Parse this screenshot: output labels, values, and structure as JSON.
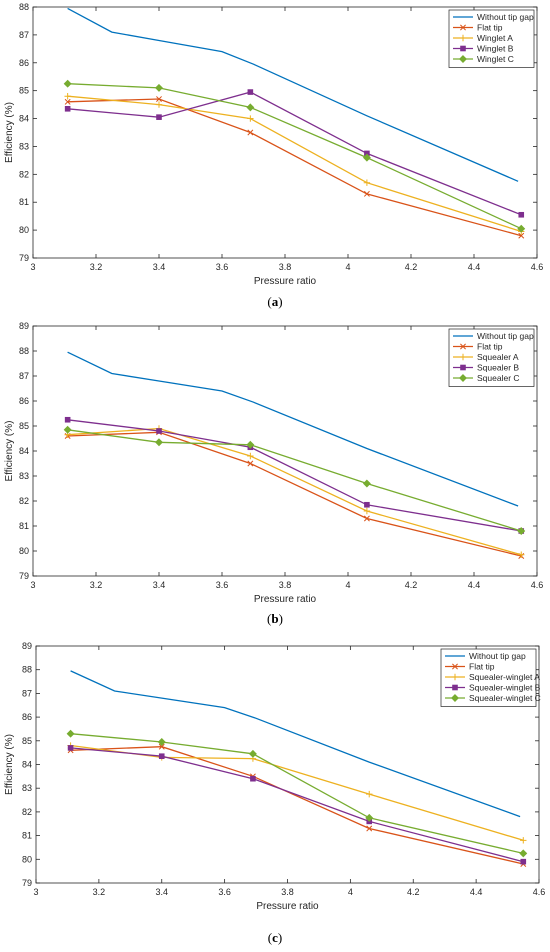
{
  "chart_data": [
    {
      "type": "line",
      "caption_open": "(",
      "caption_letter": "a",
      "caption_close": ")",
      "xlabel": "Pressure ratio",
      "ylabel": "Efficiency (%)",
      "xlim": [
        3,
        4.6
      ],
      "ylim": [
        79,
        88
      ],
      "xticks": [
        "3",
        "3.2",
        "3.4",
        "3.6",
        "3.8",
        "4",
        "4.2",
        "4.4",
        "4.6"
      ],
      "yticks": [
        "79",
        "80",
        "81",
        "82",
        "83",
        "84",
        "85",
        "86",
        "87",
        "88"
      ],
      "legend_position": "top-right",
      "series": [
        {
          "name": "Without tip gap",
          "color": "#0072BD",
          "marker": "none",
          "x": [
            3.11,
            3.25,
            3.4,
            3.6,
            3.7,
            4.06,
            4.54
          ],
          "y": [
            87.95,
            87.1,
            86.8,
            86.4,
            85.95,
            84.1,
            81.75
          ]
        },
        {
          "name": "Flat tip",
          "color": "#D95319",
          "marker": "x",
          "x": [
            3.11,
            3.4,
            3.69,
            4.06,
            4.55
          ],
          "y": [
            84.6,
            84.7,
            83.5,
            81.3,
            79.8
          ]
        },
        {
          "name": "Winglet A",
          "color": "#EDB120",
          "marker": "plus",
          "x": [
            3.11,
            3.4,
            3.69,
            4.06,
            4.55
          ],
          "y": [
            84.8,
            84.5,
            84.0,
            81.7,
            79.95
          ]
        },
        {
          "name": "Winglet B",
          "color": "#7E2F8E",
          "marker": "square",
          "x": [
            3.11,
            3.4,
            3.69,
            4.06,
            4.55
          ],
          "y": [
            84.35,
            84.05,
            84.95,
            82.75,
            80.55
          ]
        },
        {
          "name": "Winglet C",
          "color": "#77AC30",
          "marker": "diamond",
          "x": [
            3.11,
            3.4,
            3.69,
            4.06,
            4.55
          ],
          "y": [
            85.25,
            85.1,
            84.4,
            82.6,
            80.05
          ]
        }
      ]
    },
    {
      "type": "line",
      "caption_open": "(",
      "caption_letter": "b",
      "caption_close": ")",
      "xlabel": "Pressure ratio",
      "ylabel": "Efficiency (%)",
      "xlim": [
        3,
        4.6
      ],
      "ylim": [
        79,
        89
      ],
      "xticks": [
        "3",
        "3.2",
        "3.4",
        "3.6",
        "3.8",
        "4",
        "4.2",
        "4.4",
        "4.6"
      ],
      "yticks": [
        "79",
        "80",
        "81",
        "82",
        "83",
        "84",
        "85",
        "86",
        "87",
        "88",
        "89"
      ],
      "legend_position": "top-right",
      "series": [
        {
          "name": "Without tip gap",
          "color": "#0072BD",
          "marker": "none",
          "x": [
            3.11,
            3.25,
            3.4,
            3.6,
            3.7,
            4.06,
            4.54
          ],
          "y": [
            87.95,
            87.1,
            86.8,
            86.4,
            85.95,
            84.1,
            81.8
          ]
        },
        {
          "name": "Flat tip",
          "color": "#D95319",
          "marker": "x",
          "x": [
            3.11,
            3.4,
            3.69,
            4.06,
            4.55
          ],
          "y": [
            84.6,
            84.75,
            83.5,
            81.3,
            79.8
          ]
        },
        {
          "name": "Squealer A",
          "color": "#EDB120",
          "marker": "plus",
          "x": [
            3.11,
            3.4,
            3.69,
            4.06,
            4.55
          ],
          "y": [
            84.65,
            84.9,
            83.8,
            81.6,
            79.85
          ]
        },
        {
          "name": "Squealer B",
          "color": "#7E2F8E",
          "marker": "square",
          "x": [
            3.11,
            3.4,
            3.69,
            4.06,
            4.55
          ],
          "y": [
            85.25,
            84.8,
            84.15,
            81.85,
            80.8
          ]
        },
        {
          "name": "Squealer C",
          "color": "#77AC30",
          "marker": "diamond",
          "x": [
            3.11,
            3.4,
            3.69,
            4.06,
            4.55
          ],
          "y": [
            84.85,
            84.35,
            84.25,
            82.7,
            80.8
          ]
        }
      ]
    },
    {
      "type": "line",
      "caption_open": "(",
      "caption_letter": "c",
      "caption_close": ")",
      "xlabel": "Pressure ratio",
      "ylabel": "Efficiency (%)",
      "xlim": [
        3,
        4.6
      ],
      "ylim": [
        79,
        89
      ],
      "xticks": [
        "3",
        "3.2",
        "3.4",
        "3.6",
        "3.8",
        "4",
        "4.2",
        "4.4",
        "4.6"
      ],
      "yticks": [
        "79",
        "80",
        "81",
        "82",
        "83",
        "84",
        "85",
        "86",
        "87",
        "88",
        "89"
      ],
      "legend_position": "top-right",
      "series": [
        {
          "name": "Without tip gap",
          "color": "#0072BD",
          "marker": "none",
          "x": [
            3.11,
            3.25,
            3.4,
            3.6,
            3.7,
            4.06,
            4.54
          ],
          "y": [
            87.95,
            87.1,
            86.8,
            86.4,
            85.95,
            84.1,
            81.8
          ]
        },
        {
          "name": "Flat tip",
          "color": "#D95319",
          "marker": "x",
          "x": [
            3.11,
            3.4,
            3.69,
            4.06,
            4.55
          ],
          "y": [
            84.6,
            84.75,
            83.5,
            81.3,
            79.8
          ]
        },
        {
          "name": "Squealer-winglet A",
          "color": "#EDB120",
          "marker": "plus",
          "x": [
            3.11,
            3.4,
            3.69,
            4.06,
            4.55
          ],
          "y": [
            84.8,
            84.3,
            84.25,
            82.75,
            80.8
          ]
        },
        {
          "name": "Squealer-winglet B",
          "color": "#7E2F8E",
          "marker": "square",
          "x": [
            3.11,
            3.4,
            3.69,
            4.06,
            4.55
          ],
          "y": [
            84.7,
            84.35,
            83.4,
            81.6,
            79.9
          ]
        },
        {
          "name": "Squealer-winglet C",
          "color": "#77AC30",
          "marker": "diamond",
          "x": [
            3.11,
            3.4,
            3.69,
            4.06,
            4.55
          ],
          "y": [
            85.3,
            84.95,
            84.45,
            81.75,
            80.25
          ]
        }
      ]
    }
  ]
}
